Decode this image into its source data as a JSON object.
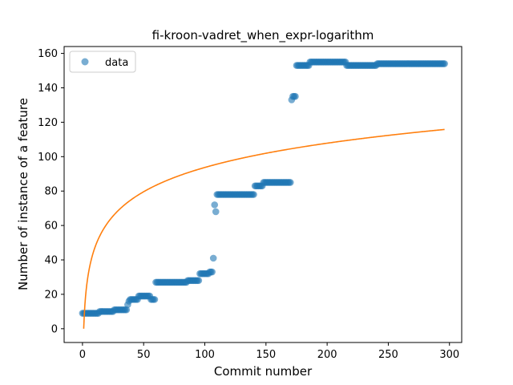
{
  "chart_data": {
    "type": "scatter",
    "title": "fi-kroon-vadret_when_expr-logarithm",
    "xlabel": "Commit number",
    "ylabel": "Number of instance of a feature",
    "xlim": [
      -15,
      310
    ],
    "ylim": [
      -8,
      164
    ],
    "xticks": [
      0,
      50,
      100,
      150,
      200,
      250,
      300
    ],
    "yticks": [
      0,
      20,
      40,
      60,
      80,
      100,
      120,
      140,
      160
    ],
    "grid": false,
    "legend_position": "upper-left",
    "colors": {
      "data": "#1f77b4",
      "fit": "#ff7f0e"
    },
    "series": [
      {
        "name": "data",
        "kind": "points",
        "segments": [
          [
            0,
            13,
            9
          ],
          [
            14,
            25,
            10
          ],
          [
            26,
            36,
            11
          ],
          [
            37,
            37,
            14
          ],
          [
            38,
            38,
            16
          ],
          [
            39,
            45,
            17
          ],
          [
            46,
            55,
            19
          ],
          [
            56,
            59,
            17
          ],
          [
            60,
            85,
            27
          ],
          [
            86,
            95,
            28
          ],
          [
            96,
            103,
            32
          ],
          [
            104,
            106,
            33
          ],
          [
            107,
            107,
            41
          ],
          [
            108,
            108,
            72
          ],
          [
            109,
            109,
            68
          ],
          [
            110,
            140,
            78
          ],
          [
            141,
            147,
            83
          ],
          [
            148,
            170,
            85
          ],
          [
            171,
            171,
            133
          ],
          [
            172,
            174,
            135
          ],
          [
            175,
            185,
            153
          ],
          [
            186,
            215,
            155
          ],
          [
            216,
            240,
            153
          ],
          [
            241,
            296,
            154
          ]
        ]
      },
      {
        "name": "",
        "kind": "line",
        "function": "log",
        "x_range": [
          1,
          296
        ],
        "coefficient": 20.35
      }
    ]
  }
}
